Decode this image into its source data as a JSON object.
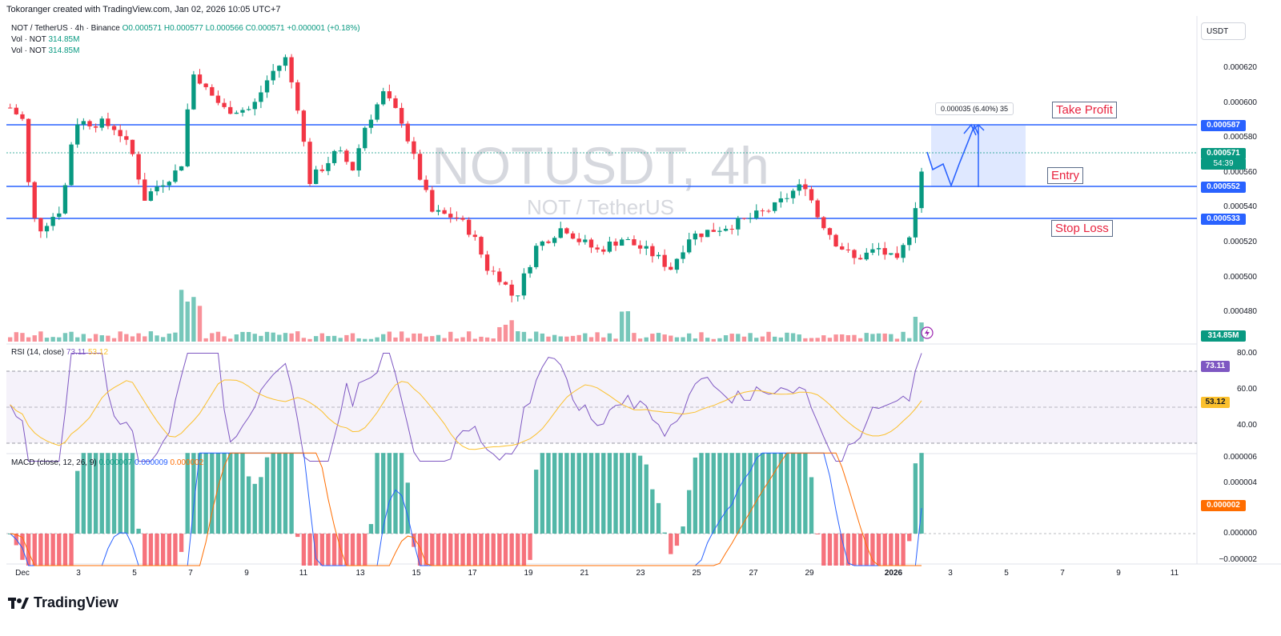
{
  "header": {
    "text": "Tokoranger created with TradingView.com, Jan 02, 2026 10:05 UTC+7"
  },
  "legend": {
    "symbol": "NOT / TetherUS · 4h · Binance",
    "o": "O0.000571",
    "h": "H0.000577",
    "l": "L0.000566",
    "c": "C0.000571",
    "chg": "+0.000001 (+0.18%)",
    "vol1_label": "Vol · NOT",
    "vol1_value": "314.85M",
    "vol2_label": "Vol · NOT",
    "vol2_value": "314.85M"
  },
  "watermark": {
    "title": "NOTUSDT, 4h",
    "subtitle": "NOT / TetherUS"
  },
  "currency_button": "USDT",
  "price_axis": [
    "0.000620",
    "0.000600",
    "0.000580",
    "0.000560",
    "0.000540",
    "0.000520",
    "0.000500",
    "0.000480"
  ],
  "price_tags": {
    "take_profit": "0.000587",
    "current": "0.000571",
    "countdown": "54:39",
    "entry": "0.000552",
    "stop_loss": "0.000533",
    "volume": "314.85M"
  },
  "annotations": {
    "take_profit": "Take Profit",
    "entry": "Entry",
    "stop_loss": "Stop Loss",
    "measure": "0.000035 (6.40%) 35"
  },
  "rsi": {
    "label": "RSI (14, close)",
    "rsi_value": "73.11",
    "ma_value": "53.12",
    "axis": [
      "80.00",
      "60.00",
      "40.00"
    ],
    "tag_rsi": "73.11",
    "tag_ma": "53.12"
  },
  "macd": {
    "label": "MACD (close, 12, 26, 9)",
    "v1": "0.000007",
    "v2": "0.000009",
    "v3": "0.000002",
    "axis": [
      "0.000006",
      "0.000004",
      "0.000002",
      "0.000000",
      "−0.000002"
    ],
    "tag": "0.000002"
  },
  "time_axis": [
    "Dec",
    "3",
    "5",
    "7",
    "9",
    "11",
    "13",
    "15",
    "17",
    "19",
    "21",
    "23",
    "25",
    "27",
    "29",
    "2026",
    "3",
    "5",
    "7",
    "9",
    "11"
  ],
  "brand": "TradingView",
  "colors": {
    "up": "#089981",
    "down": "#f23645",
    "line": "#2962ff",
    "rsi": "#7e57c2",
    "rsi_ma": "#fbc02d",
    "macd_signal": "#ff6d00"
  }
}
